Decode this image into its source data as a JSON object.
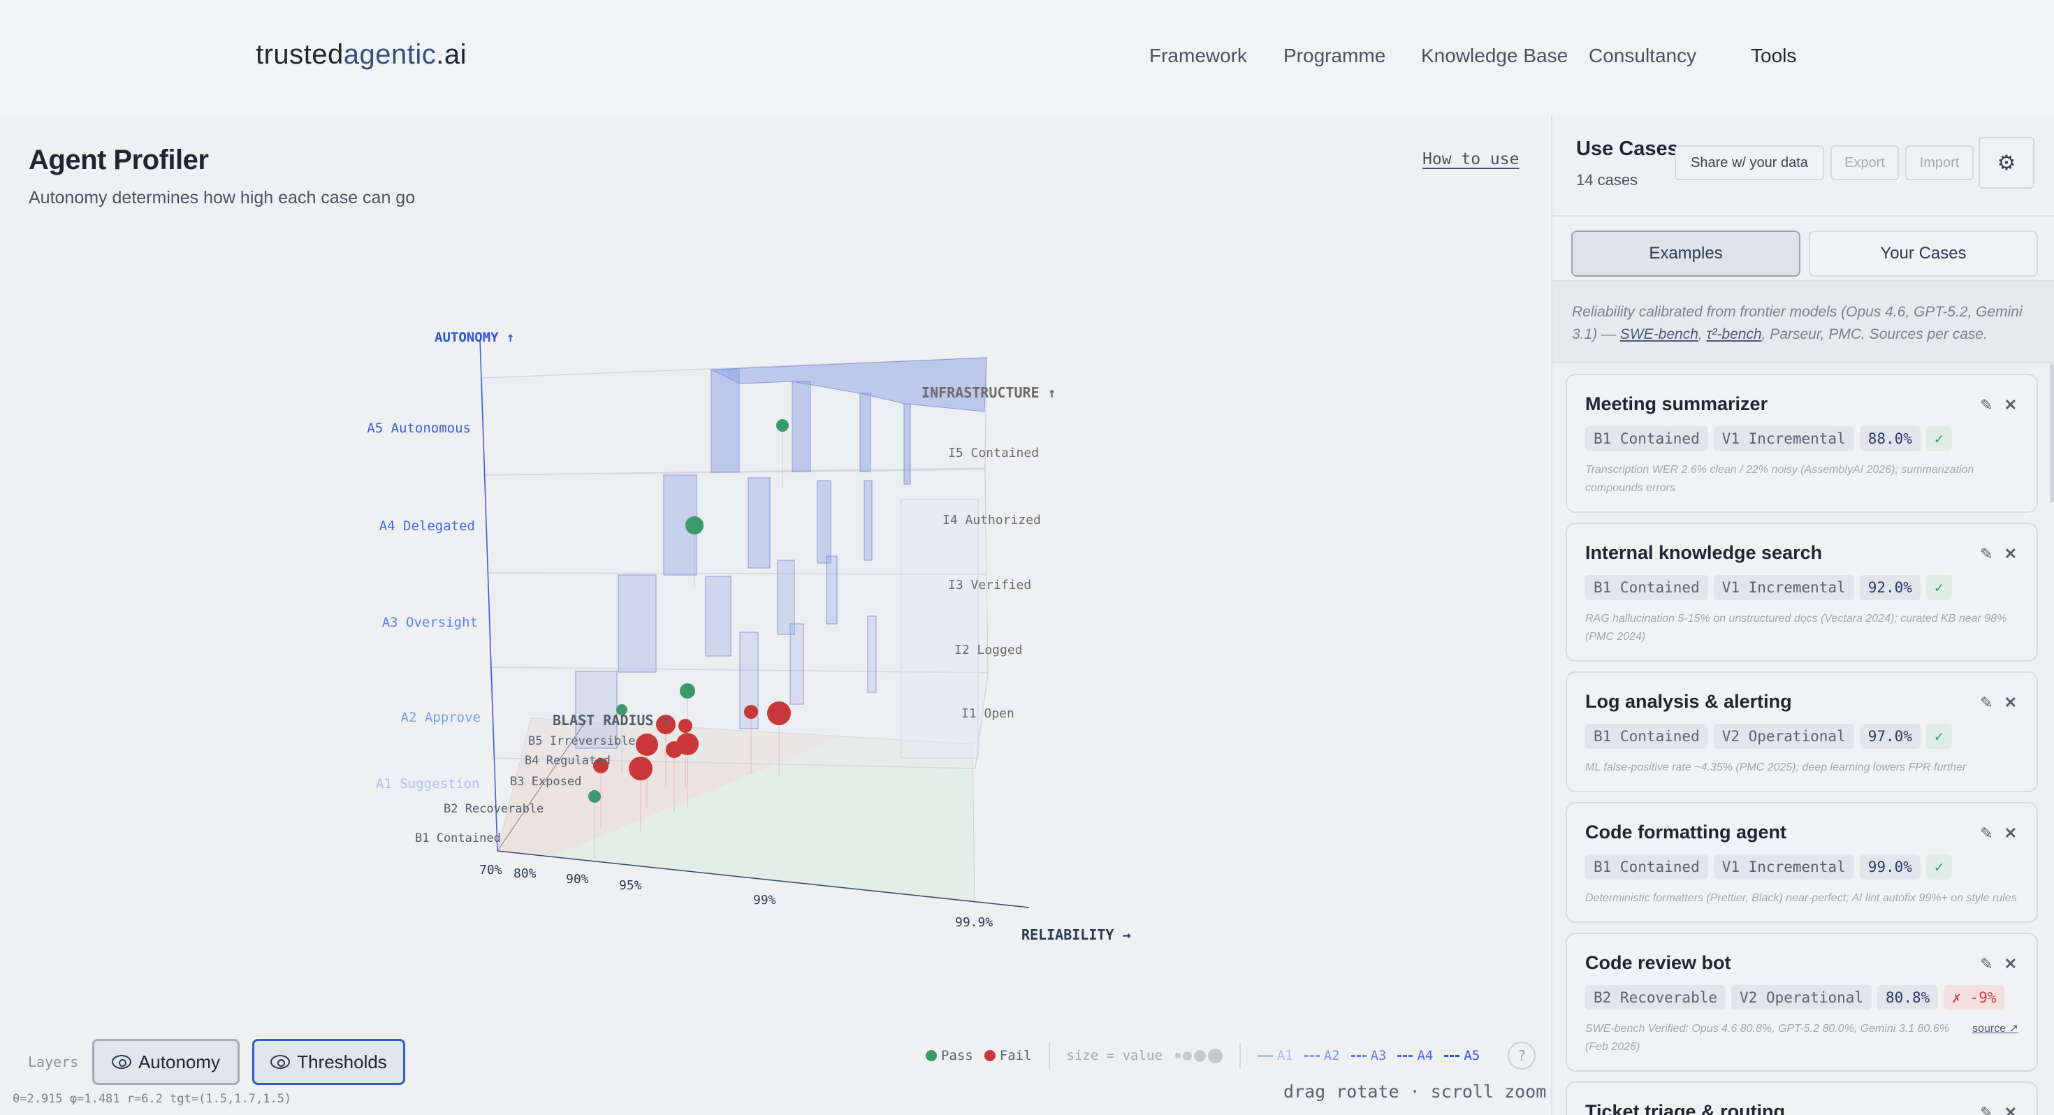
{
  "header": {
    "logo_part1": "trusted",
    "logo_part2": "agentic",
    "logo_part3": ".ai",
    "nav": [
      "Framework",
      "Programme",
      "Knowledge Base",
      "Consultancy",
      "Tools"
    ],
    "active_nav": "Tools"
  },
  "main": {
    "title": "Agent Profiler",
    "subtitle": "Autonomy determines how high each case can go",
    "how_to_use": "How to use",
    "layers_label": "Layers",
    "layers": [
      {
        "label": "Autonomy",
        "icon": "eye-icon",
        "active": false
      },
      {
        "label": "Thresholds",
        "icon": "eye-icon",
        "active": true
      }
    ],
    "legend": {
      "pass": "Pass",
      "fail": "Fail",
      "size_label": "size = value",
      "autonomy_lines": [
        "A1",
        "A2",
        "A3",
        "A4",
        "A5"
      ],
      "help": "?"
    },
    "hint": "drag rotate · scroll zoom",
    "camera": "θ=2.915 φ=1.481 r=6.2 tgt=(1.5,1.7,1.5)"
  },
  "chart_data": {
    "type": "scatter3d",
    "axes": {
      "autonomy": {
        "label": "AUTONOMY ↑",
        "ticks": [
          "A1 Suggestion",
          "A2 Approve",
          "A3 Oversight",
          "A4 Delegated",
          "A5 Autonomous"
        ]
      },
      "infrastructure": {
        "label": "INFRASTRUCTURE ↑",
        "ticks": [
          "I1 Open",
          "I2 Logged",
          "I3 Verified",
          "I4 Authorized",
          "I5 Contained"
        ]
      },
      "blast_radius": {
        "label": "BLAST RADIUS ↑",
        "ticks": [
          "B1 Contained",
          "B2 Recoverable",
          "B3 Exposed",
          "B4 Regulated",
          "B5 Irreversible"
        ]
      },
      "reliability": {
        "label": "RELIABILITY →",
        "ticks": [
          "70%",
          "80%",
          "90%",
          "95%",
          "99%",
          "99.9%"
        ]
      }
    },
    "points": [
      {
        "status": "pass"
      },
      {
        "status": "pass"
      },
      {
        "status": "pass"
      },
      {
        "status": "pass"
      },
      {
        "status": "pass"
      },
      {
        "status": "fail"
      },
      {
        "status": "fail"
      },
      {
        "status": "fail"
      },
      {
        "status": "fail"
      },
      {
        "status": "fail"
      },
      {
        "status": "fail"
      },
      {
        "status": "fail"
      },
      {
        "status": "fail"
      },
      {
        "status": "fail"
      }
    ],
    "colors": {
      "pass": "#3a9a6a",
      "fail": "#c8383a",
      "threshold": "#7f95e0"
    }
  },
  "panel": {
    "title": "Use Cases",
    "count": "14 cases",
    "share": "Share w/ your data",
    "export": "Export",
    "import": "Import",
    "tabs": [
      "Examples",
      "Your Cases"
    ],
    "note_prefix": "Reliability calibrated from frontier models (Opus 4.6, GPT-5.2, Gemini 3.1) — ",
    "note_link1": "SWE-bench",
    "note_sep": ", ",
    "note_link2": "τ²-bench",
    "note_suffix": ", Parseur, PMC. Sources per case.",
    "cases": [
      {
        "title": "Meeting summarizer",
        "blast": "B1 Contained",
        "value": "V1 Incremental",
        "reliability": "88.0%",
        "result": "✓",
        "pass": true,
        "note": "Transcription WER 2.6% clean / 22% noisy (AssemblyAI 2026); summarization compounds errors"
      },
      {
        "title": "Internal knowledge search",
        "blast": "B1 Contained",
        "value": "V1 Incremental",
        "reliability": "92.0%",
        "result": "✓",
        "pass": true,
        "note": "RAG hallucination 5-15% on unstructured docs (Vectara 2024); curated KB near 98% (PMC 2024)"
      },
      {
        "title": "Log analysis & alerting",
        "blast": "B1 Contained",
        "value": "V2 Operational",
        "reliability": "97.0%",
        "result": "✓",
        "pass": true,
        "note": "ML false-positive rate ~4.35% (PMC 2025); deep learning lowers FPR further"
      },
      {
        "title": "Code formatting agent",
        "blast": "B1 Contained",
        "value": "V1 Incremental",
        "reliability": "99.0%",
        "result": "✓",
        "pass": true,
        "note": "Deterministic formatters (Prettier, Black) near-perfect; AI lint autofix 99%+ on style rules"
      },
      {
        "title": "Code review bot",
        "blast": "B2 Recoverable",
        "value": "V2 Operational",
        "reliability": "80.8%",
        "result": "✗ -9%",
        "pass": false,
        "note": "SWE-bench Verified: Opus 4.6 80.8%, GPT-5.2 80.0%, Gemini 3.1 80.6% (Feb 2026)",
        "source": "source ↗"
      },
      {
        "title": "Ticket triage & routing",
        "blast": "",
        "value": "",
        "reliability": "",
        "result": "",
        "pass": true,
        "note": ""
      }
    ]
  }
}
